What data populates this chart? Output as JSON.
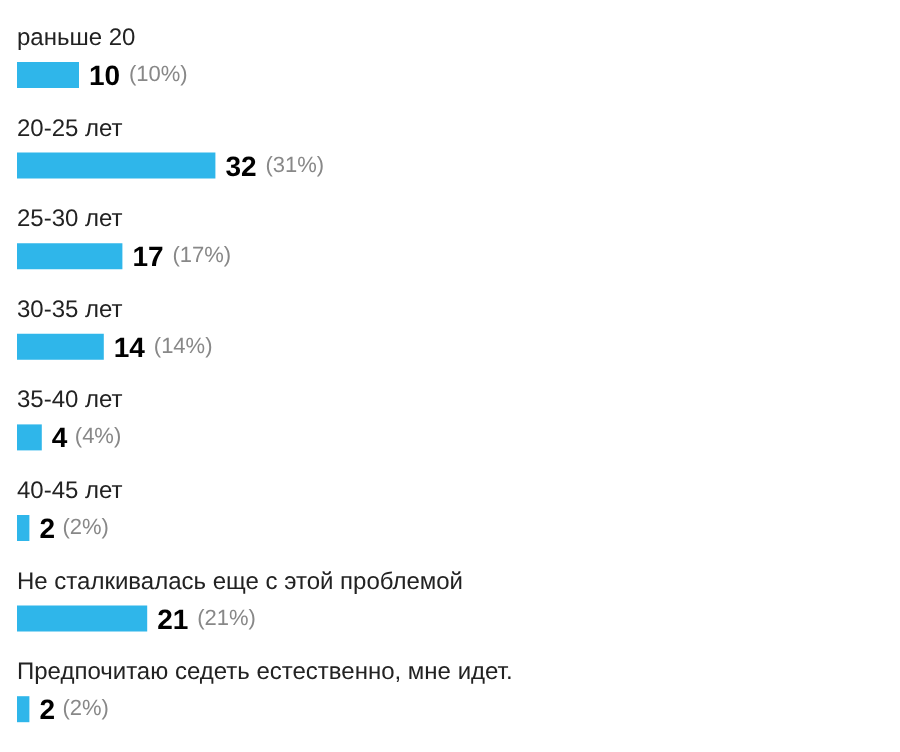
{
  "chart_data": {
    "type": "bar",
    "orientation": "horizontal",
    "categories": [
      "раньше 20",
      "20-25 лет",
      "25-30 лет",
      "30-35 лет",
      "35-40 лет",
      "40-45 лет",
      "Не сталкивалась еще с этой проблемой",
      "Предпочитаю седеть естественно, мне идет."
    ],
    "values": [
      10,
      32,
      17,
      14,
      4,
      2,
      21,
      2
    ],
    "value_labels": [
      "10 (10%)",
      "32 (31%)",
      "17 (17%)",
      "14 (14%)",
      "4 (4%)",
      "2 (2%)",
      "21 (21%)",
      "2 (2%)"
    ],
    "color": "#2fb6ea"
  }
}
